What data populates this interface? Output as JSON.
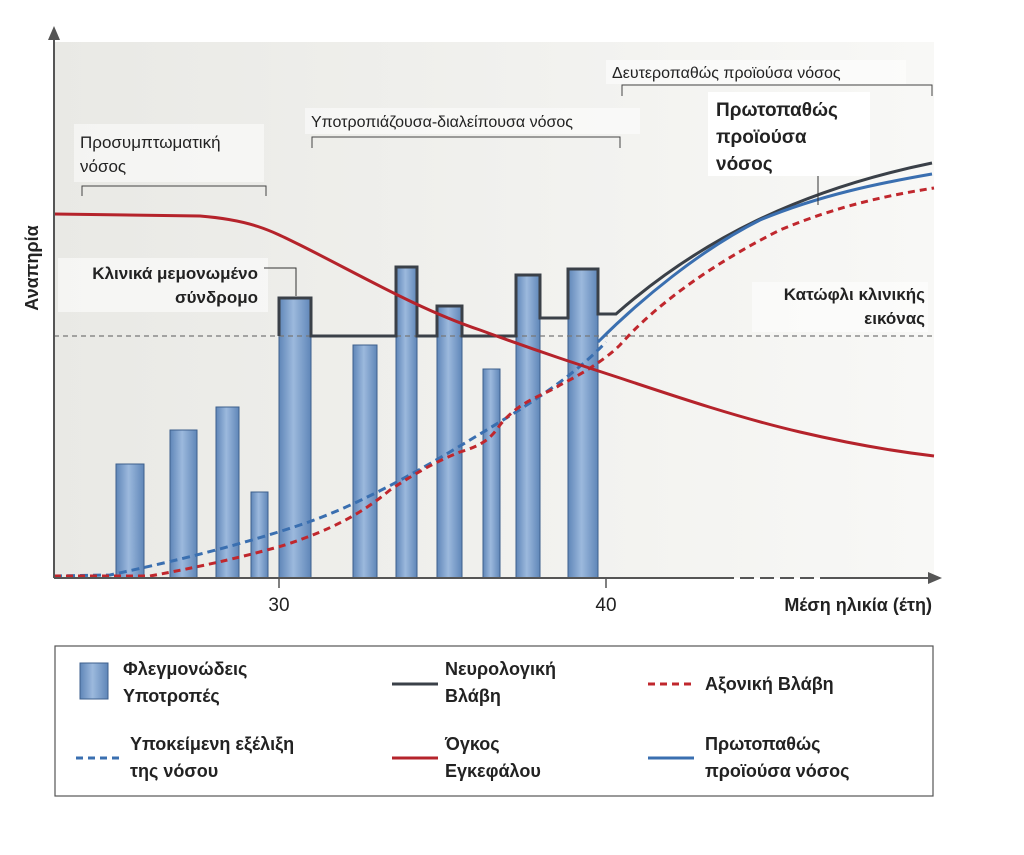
{
  "axes": {
    "y_label": "Αναπηρία",
    "x_label": "Μέση ηλικία (έτη)",
    "x_ticks": [
      "30",
      "40"
    ]
  },
  "phases": {
    "presymptomatic": [
      "Προσυμπτωματική",
      "νόσος"
    ],
    "relapsing_remitting": "Υποτροπιάζουσα-διαλείπουσα νόσος",
    "secondary_progressive": "Δευτεροπαθώς προϊούσα νόσος",
    "primary_progressive": [
      "Πρωτοπαθώς",
      "προϊούσα",
      "νόσος"
    ]
  },
  "annotations": {
    "cis": [
      "Κλινικά μεμονωμένο",
      "σύνδρομο"
    ],
    "threshold": [
      "Κατώφλι κλινικής",
      "εικόνας"
    ]
  },
  "colors": {
    "bar_fill": "#5f86b8",
    "bar_fill_light": "#9cb9dd",
    "neuro": "#3a4048",
    "axonal": "#c0272d",
    "underlying": "#3a6fb0",
    "brain": "#b5232b",
    "primary": "#3a6fb0",
    "threshold": "#777777",
    "background": "#eeeeea"
  },
  "legend": {
    "relapses": [
      "Φλεγμονώδεις",
      "Υποτροπές"
    ],
    "neuro": [
      "Νευρολογική",
      "Βλάβη"
    ],
    "axonal": [
      "Αξονική Βλάβη"
    ],
    "underlying": [
      "Υποκείμενη εξέλιξη",
      "της νόσου"
    ],
    "brain": [
      "Όγκος",
      "Εγκεφάλου"
    ],
    "primary": [
      "Πρωτοπαθώς",
      "προϊούσα νόσος"
    ]
  }
}
